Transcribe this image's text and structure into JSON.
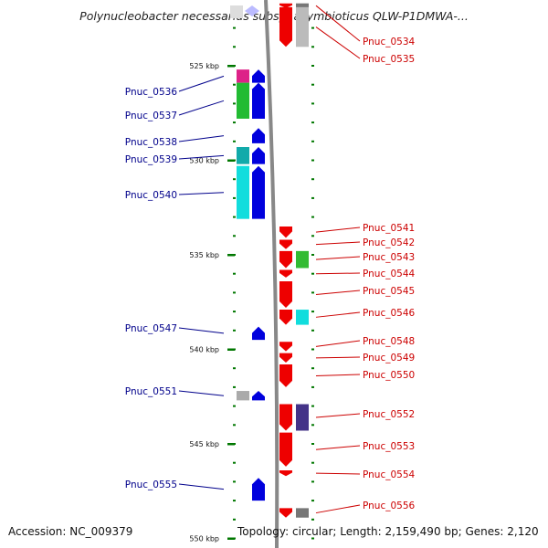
{
  "title": "Polynucleobacter necessarius subsp. asymbioticus QLW-P1DMWA-...",
  "footer": {
    "accession": "Accession: NC_009379",
    "summary": "Topology: circular; Length: 2,159,490 bp; Genes: 2,120"
  },
  "colors": {
    "reverse_strand": "#0000dd",
    "forward_strand": "#ee0000",
    "label_reverse": "#00008b",
    "label_forward": "#cc0000",
    "backbone": "#888888",
    "tick": "#007700"
  },
  "ruler": [
    {
      "label": "525 kbp",
      "kbp": 525
    },
    {
      "label": "530 kbp",
      "kbp": 530
    },
    {
      "label": "535 kbp",
      "kbp": 535
    },
    {
      "label": "540 kbp",
      "kbp": 540
    },
    {
      "label": "545 kbp",
      "kbp": 545
    },
    {
      "label": "550 kbp",
      "kbp": 550
    }
  ],
  "genes": [
    {
      "name": "Pnuc_0534",
      "strand": "+",
      "start": 521.7,
      "end": 521.9
    },
    {
      "name": "Pnuc_0535",
      "strand": "+",
      "start": 521.9,
      "end": 524.0
    },
    {
      "name": "Pnuc_0536",
      "strand": "-",
      "start": 525.2,
      "end": 525.9
    },
    {
      "name": "Pnuc_0537",
      "strand": "-",
      "start": 525.9,
      "end": 527.8
    },
    {
      "name": "Pnuc_0538",
      "strand": "-",
      "start": 528.3,
      "end": 529.1
    },
    {
      "name": "Pnuc_0539",
      "strand": "-",
      "start": 529.3,
      "end": 530.2
    },
    {
      "name": "Pnuc_0540",
      "strand": "-",
      "start": 530.3,
      "end": 533.1
    },
    {
      "name": "Pnuc_0541",
      "strand": "+",
      "start": 533.5,
      "end": 534.1
    },
    {
      "name": "Pnuc_0542",
      "strand": "+",
      "start": 534.2,
      "end": 534.7
    },
    {
      "name": "Pnuc_0543",
      "strand": "+",
      "start": 534.8,
      "end": 535.7
    },
    {
      "name": "Pnuc_0544",
      "strand": "+",
      "start": 535.8,
      "end": 536.2
    },
    {
      "name": "Pnuc_0545",
      "strand": "+",
      "start": 536.4,
      "end": 537.8
    },
    {
      "name": "Pnuc_0546",
      "strand": "+",
      "start": 537.9,
      "end": 538.7
    },
    {
      "name": "Pnuc_0547",
      "strand": "-",
      "start": 538.8,
      "end": 539.5
    },
    {
      "name": "Pnuc_0548",
      "strand": "+",
      "start": 539.6,
      "end": 540.1
    },
    {
      "name": "Pnuc_0549",
      "strand": "+",
      "start": 540.2,
      "end": 540.7
    },
    {
      "name": "Pnuc_0550",
      "strand": "+",
      "start": 540.8,
      "end": 542.0
    },
    {
      "name": "Pnuc_0551",
      "strand": "-",
      "start": 542.2,
      "end": 542.7
    },
    {
      "name": "Pnuc_0552",
      "strand": "+",
      "start": 542.9,
      "end": 544.3
    },
    {
      "name": "Pnuc_0553",
      "strand": "+",
      "start": 544.4,
      "end": 546.2
    },
    {
      "name": "Pnuc_0554",
      "strand": "+",
      "start": 546.4,
      "end": 546.7
    },
    {
      "name": "Pnuc_0555",
      "strand": "-",
      "start": 546.8,
      "end": 548.0
    },
    {
      "name": "Pnuc_0556",
      "strand": "+",
      "start": 548.4,
      "end": 548.9
    }
  ]
}
